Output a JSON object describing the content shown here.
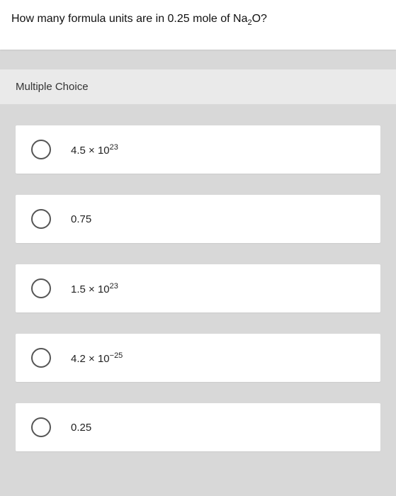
{
  "question": {
    "prefix": "How many formula units are in 0.25 mole of Na",
    "sub": "2",
    "suffix": "O?"
  },
  "section_label": "Multiple Choice",
  "options": [
    {
      "base": "4.5 × 10",
      "exp": "23",
      "exp_type": "sup"
    },
    {
      "base": "0.75",
      "exp": "",
      "exp_type": "none"
    },
    {
      "base": "1.5 × 10",
      "exp": "23",
      "exp_type": "sup"
    },
    {
      "base": "4.2 × 10",
      "exp": "−25",
      "exp_type": "sup"
    },
    {
      "base": "0.25",
      "exp": "",
      "exp_type": "none"
    }
  ],
  "colors": {
    "page_bg": "#d8d8d8",
    "card_bg": "#ffffff",
    "header_bg": "#eaeaea",
    "radio_border": "#555555",
    "text": "#222222"
  }
}
